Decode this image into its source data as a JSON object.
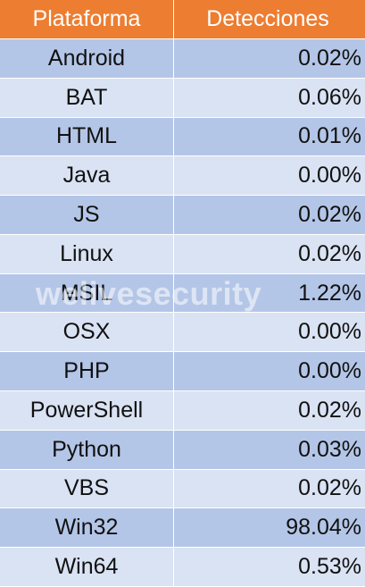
{
  "table": {
    "header": [
      "Plataforma",
      "Detecciones"
    ],
    "rows": [
      [
        "Android",
        "0.02%"
      ],
      [
        "BAT",
        "0.06%"
      ],
      [
        "HTML",
        "0.01%"
      ],
      [
        "Java",
        "0.00%"
      ],
      [
        "JS",
        "0.02%"
      ],
      [
        "Linux",
        "0.02%"
      ],
      [
        "MSIL",
        "1.22%"
      ],
      [
        "OSX",
        "0.00%"
      ],
      [
        "PHP",
        "0.00%"
      ],
      [
        "PowerShell",
        "0.02%"
      ],
      [
        "Python",
        "0.03%"
      ],
      [
        "VBS",
        "0.02%"
      ],
      [
        "Win32",
        "98.04%"
      ],
      [
        "Win64",
        "0.53%"
      ]
    ]
  },
  "watermark": "welivesecurity"
}
